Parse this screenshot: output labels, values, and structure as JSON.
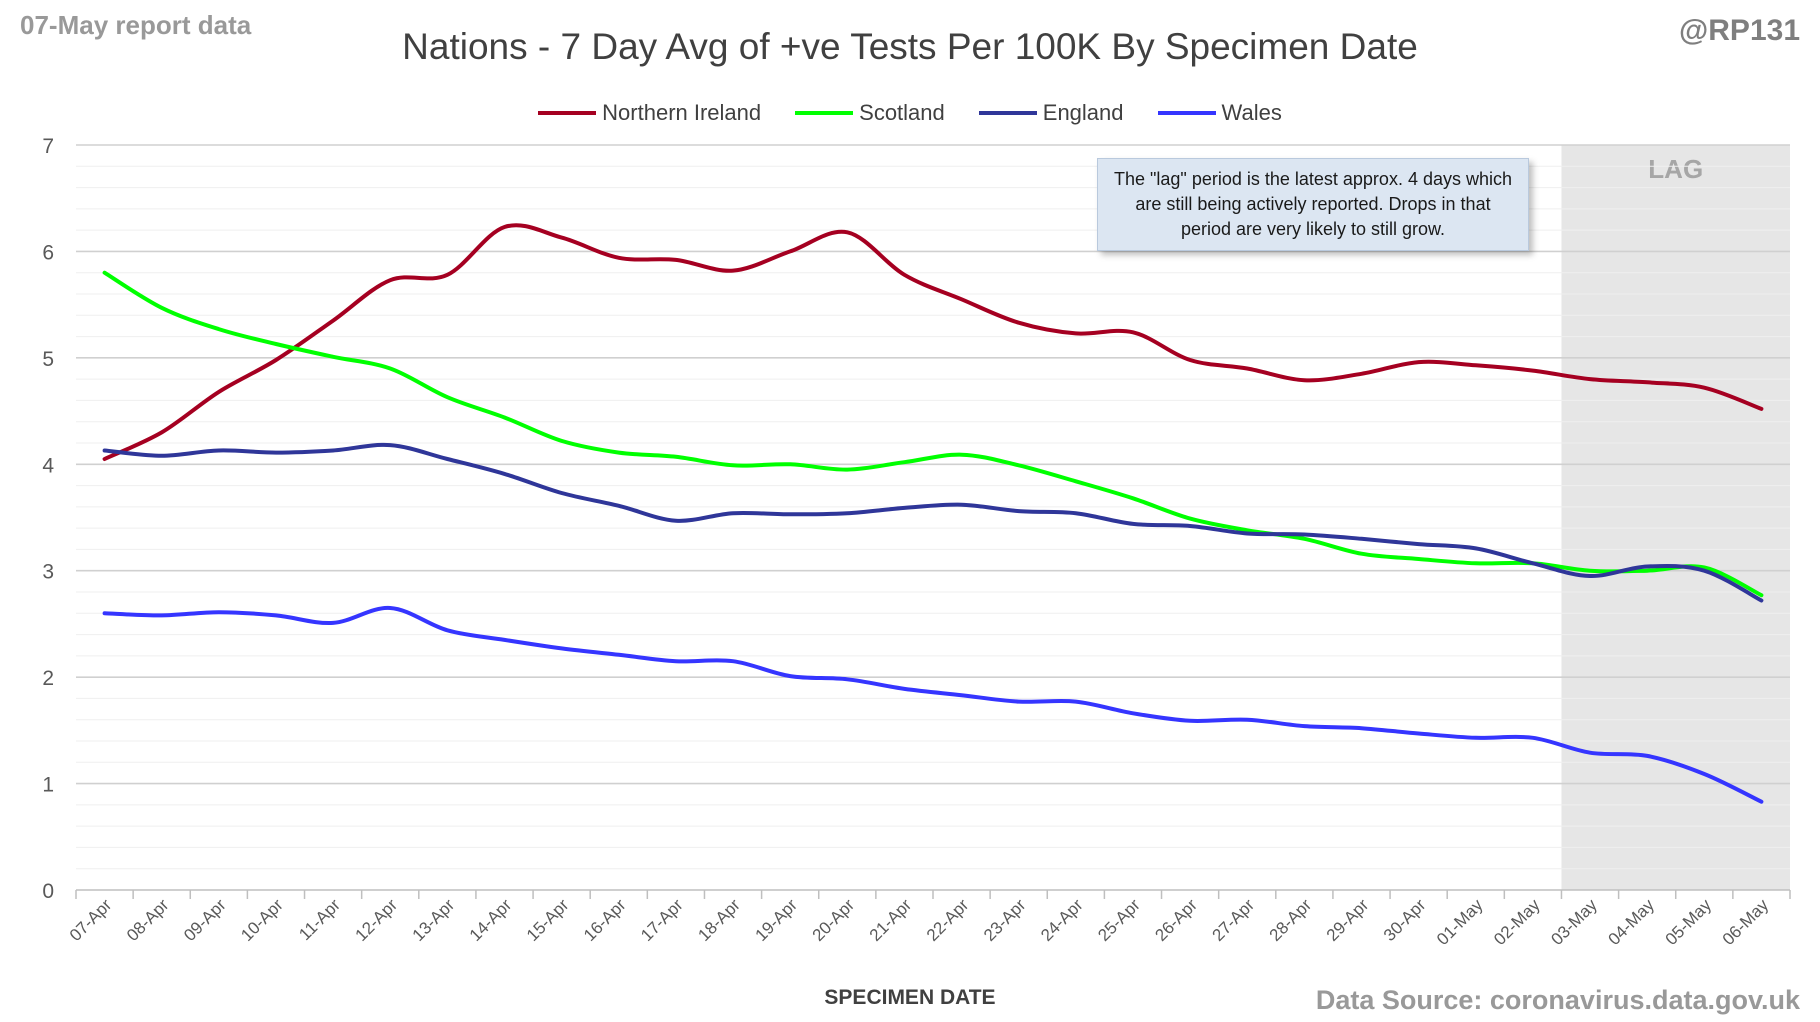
{
  "header": {
    "report_label": "07-May report data",
    "handle": "@RP131",
    "title": "Nations - 7 Day Avg of +ve Tests Per 100K By Specimen Date"
  },
  "footer": {
    "source": "Data Source: coronavirus.data.gov.uk"
  },
  "annotation": {
    "lag_label": "LAG",
    "note": "The \"lag\" period is the latest approx. 4 days which are still being actively reported. Drops in that period are very likely to still grow."
  },
  "chart_data": {
    "type": "line",
    "title": "Nations - 7 Day Avg of +ve Tests Per 100K By Specimen Date",
    "xlabel": "SPECIMEN DATE",
    "ylabel": "",
    "ylim": [
      0,
      7
    ],
    "yticks": [
      0,
      1,
      2,
      3,
      4,
      5,
      6,
      7
    ],
    "grid": true,
    "legend_position": "top",
    "lag_region": [
      "03-May",
      "06-May"
    ],
    "categories": [
      "07-Apr",
      "08-Apr",
      "09-Apr",
      "10-Apr",
      "11-Apr",
      "12-Apr",
      "13-Apr",
      "14-Apr",
      "15-Apr",
      "16-Apr",
      "17-Apr",
      "18-Apr",
      "19-Apr",
      "20-Apr",
      "21-Apr",
      "22-Apr",
      "23-Apr",
      "24-Apr",
      "25-Apr",
      "26-Apr",
      "27-Apr",
      "28-Apr",
      "29-Apr",
      "30-Apr",
      "01-May",
      "02-May",
      "03-May",
      "04-May",
      "05-May",
      "06-May"
    ],
    "series": [
      {
        "name": "Northern Ireland",
        "color": "#a50021",
        "values": [
          4.05,
          4.3,
          4.68,
          4.98,
          5.35,
          5.73,
          5.78,
          6.23,
          6.13,
          5.94,
          5.92,
          5.82,
          6.0,
          6.18,
          5.78,
          5.55,
          5.33,
          5.23,
          5.24,
          4.98,
          4.9,
          4.79,
          4.85,
          4.96,
          4.93,
          4.88,
          4.8,
          4.77,
          4.72,
          4.52
        ]
      },
      {
        "name": "Scotland",
        "color": "#00ff00",
        "values": [
          5.8,
          5.47,
          5.27,
          5.13,
          5.01,
          4.9,
          4.63,
          4.44,
          4.22,
          4.11,
          4.07,
          3.99,
          4.0,
          3.95,
          4.02,
          4.09,
          3.99,
          3.84,
          3.68,
          3.49,
          3.38,
          3.3,
          3.16,
          3.11,
          3.07,
          3.07,
          3.0,
          3.0,
          3.03,
          2.77
        ]
      },
      {
        "name": "England",
        "color": "#2f3699",
        "values": [
          4.13,
          4.08,
          4.13,
          4.11,
          4.13,
          4.18,
          4.05,
          3.91,
          3.73,
          3.61,
          3.47,
          3.54,
          3.53,
          3.54,
          3.59,
          3.62,
          3.56,
          3.54,
          3.44,
          3.42,
          3.35,
          3.34,
          3.3,
          3.25,
          3.21,
          3.07,
          2.95,
          3.04,
          3.0,
          2.72
        ]
      },
      {
        "name": "Wales",
        "color": "#3535ff",
        "values": [
          2.6,
          2.58,
          2.61,
          2.58,
          2.51,
          2.65,
          2.44,
          2.35,
          2.27,
          2.21,
          2.15,
          2.15,
          2.01,
          1.98,
          1.89,
          1.83,
          1.77,
          1.77,
          1.66,
          1.59,
          1.6,
          1.54,
          1.52,
          1.47,
          1.43,
          1.43,
          1.29,
          1.26,
          1.09,
          0.83
        ]
      }
    ]
  }
}
